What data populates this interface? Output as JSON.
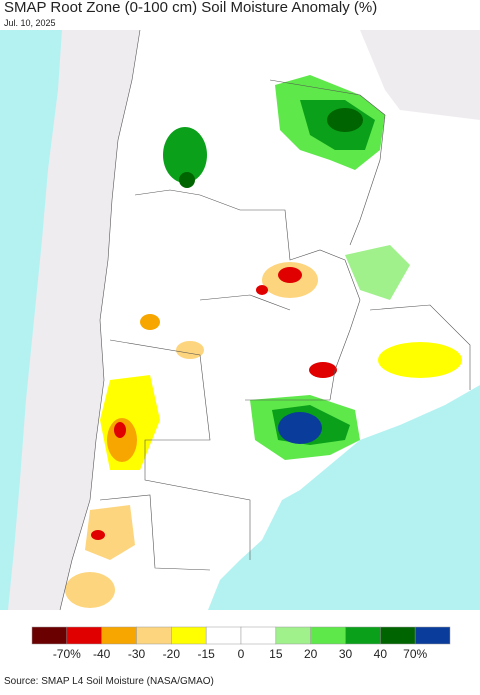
{
  "header": {
    "title": "SMAP Root Zone (0-100 cm) Soil Moisture Anomaly (%)",
    "date": "Jul. 10, 2025"
  },
  "legend": {
    "colors": [
      "#6b0000",
      "#e00000",
      "#f7a600",
      "#fdd57e",
      "#ffff00",
      "#ffffff",
      "#ffffff",
      "#a0f08c",
      "#5ee84a",
      "#0aa01a",
      "#006400",
      "#0a3c9c"
    ],
    "labels": [
      "-70%",
      "-40",
      "-30",
      "-20",
      "-15",
      "0",
      "15",
      "20",
      "30",
      "40",
      "70%"
    ]
  },
  "source": "Source: SMAP L4 Soil Moisture (NASA/GMAO)"
}
